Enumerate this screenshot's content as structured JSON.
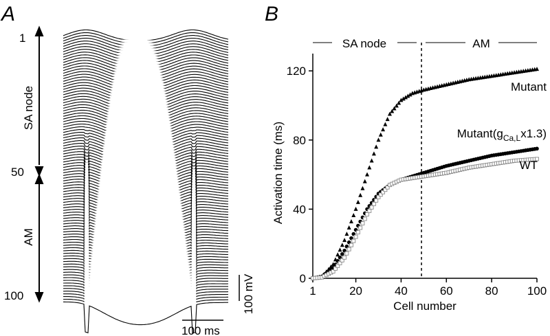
{
  "panels": {
    "a": {
      "letter": "A",
      "cell_ticks": [
        "1",
        "50",
        "100"
      ],
      "segment_labels": [
        "SA node",
        "AM"
      ],
      "scale_voltage": "100 mV",
      "scale_time": "100 ms",
      "trace_count": 100,
      "line_color": "#000000"
    },
    "b": {
      "letter": "B",
      "region_labels": [
        "SA node",
        "AM"
      ]
    }
  },
  "chart_data": [
    {
      "type": "scatter",
      "title": "",
      "xlabel": "Cell number",
      "ylabel": "Activation time (ms)",
      "xlim": [
        1,
        100
      ],
      "ylim": [
        0,
        130
      ],
      "xticks": [
        1,
        20,
        40,
        60,
        80,
        100
      ],
      "yticks": [
        0,
        40,
        80,
        120
      ],
      "grid": false,
      "boundary_x": 49,
      "region_labels": [
        "SA node",
        "AM"
      ],
      "series": [
        {
          "name": "Mutant",
          "label_parts": {
            "base": "Mutant",
            "sub": "",
            "suffix": ""
          },
          "marker": "filled-triangle",
          "color": "#000000",
          "points": [
            [
              1,
              0
            ],
            [
              5,
              1
            ],
            [
              10,
              8
            ],
            [
              15,
              22
            ],
            [
              20,
              40
            ],
            [
              25,
              60
            ],
            [
              30,
              80
            ],
            [
              35,
              95
            ],
            [
              40,
              103
            ],
            [
              45,
              107
            ],
            [
              50,
              109
            ],
            [
              60,
              112
            ],
            [
              70,
              115
            ],
            [
              80,
              117
            ],
            [
              90,
              119
            ],
            [
              100,
              121
            ]
          ]
        },
        {
          "name": "Mutant(gCa,Lx1.3)",
          "label_parts": {
            "base": "Mutant(g",
            "sub": "Ca,L",
            "suffix": "x1.3)"
          },
          "marker": "filled-circle",
          "color": "#000000",
          "points": [
            [
              1,
              0
            ],
            [
              5,
              1
            ],
            [
              10,
              6
            ],
            [
              15,
              16
            ],
            [
              20,
              28
            ],
            [
              25,
              40
            ],
            [
              30,
              49
            ],
            [
              35,
              54
            ],
            [
              40,
              57
            ],
            [
              45,
              59
            ],
            [
              50,
              61
            ],
            [
              60,
              65
            ],
            [
              70,
              68
            ],
            [
              80,
              71
            ],
            [
              90,
              73
            ],
            [
              100,
              75
            ]
          ]
        },
        {
          "name": "WT",
          "label_parts": {
            "base": "WT",
            "sub": "",
            "suffix": ""
          },
          "marker": "open-square",
          "color": "#888888",
          "points": [
            [
              1,
              0
            ],
            [
              5,
              0.5
            ],
            [
              10,
              4
            ],
            [
              15,
              12
            ],
            [
              20,
              24
            ],
            [
              25,
              37
            ],
            [
              30,
              47
            ],
            [
              35,
              54
            ],
            [
              40,
              57
            ],
            [
              45,
              58
            ],
            [
              50,
              59
            ],
            [
              60,
              61
            ],
            [
              70,
              64
            ],
            [
              80,
              66
            ],
            [
              90,
              68
            ],
            [
              100,
              69
            ]
          ]
        }
      ]
    }
  ]
}
